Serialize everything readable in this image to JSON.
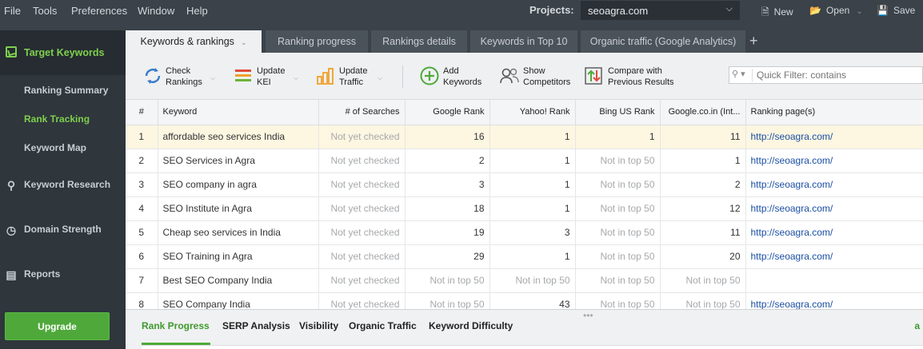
{
  "menu": [
    "File",
    "Tools",
    "Preferences",
    "Window",
    "Help"
  ],
  "projects": {
    "label": "Projects:",
    "value": "seoagra.com"
  },
  "top_buttons": {
    "new": "New",
    "open": "Open",
    "save": "Save"
  },
  "sidebar": {
    "target": "Target Keywords",
    "sub": [
      "Ranking Summary",
      "Rank Tracking",
      "Keyword Map"
    ],
    "active_sub": "Rank Tracking",
    "items": [
      "Keyword Research",
      "Domain Strength",
      "Reports"
    ],
    "upgrade": "Upgrade"
  },
  "tabs": [
    "Keywords & rankings",
    "Ranking progress",
    "Rankings details",
    "Keywords in Top 10",
    "Organic traffic (Google Analytics)"
  ],
  "toolbar": {
    "check": "Check\nRankings",
    "kei": "Update\nKEI",
    "traffic": "Update\nTraffic",
    "add": "Add\nKeywords",
    "competitors": "Show\nCompetitors",
    "compare": "Compare with\nPrevious Results",
    "filter_placeholder": "Quick Filter: contains"
  },
  "table": {
    "columns": [
      "#",
      "Keyword",
      "# of Searches",
      "Google Rank",
      "Yahoo! Rank",
      "Bing US Rank",
      "Google.co.in (Int...",
      "Ranking page(s)"
    ],
    "rows": [
      [
        "1",
        "affordable seo services India",
        "Not yet checked",
        "16",
        "1",
        "1",
        "11",
        "http://seoagra.com/"
      ],
      [
        "2",
        "SEO Services in Agra",
        "Not yet checked",
        "2",
        "1",
        "Not in top 50",
        "1",
        "http://seoagra.com/"
      ],
      [
        "3",
        "SEO company in agra",
        "Not yet checked",
        "3",
        "1",
        "Not in top 50",
        "2",
        "http://seoagra.com/"
      ],
      [
        "4",
        "SEO Institute in Agra",
        "Not yet checked",
        "18",
        "1",
        "Not in top 50",
        "12",
        "http://seoagra.com/"
      ],
      [
        "5",
        "Cheap seo services in India",
        "Not yet checked",
        "19",
        "3",
        "Not in top 50",
        "11",
        "http://seoagra.com/"
      ],
      [
        "6",
        "SEO Training in Agra",
        "Not yet checked",
        "29",
        "1",
        "Not in top 50",
        "20",
        "http://seoagra.com/"
      ],
      [
        "7",
        "Best SEO Company India",
        "Not yet checked",
        "Not in top 50",
        "Not in top 50",
        "Not in top 50",
        "Not in top 50",
        ""
      ],
      [
        "8",
        "SEO Company India",
        "Not yet checked",
        "Not in top 50",
        "43",
        "Not in top 50",
        "Not in top 50",
        "http://seoagra.com/"
      ]
    ]
  },
  "bottom_tabs": [
    "Rank Progress",
    "SERP Analysis",
    "Visibility",
    "Organic Traffic",
    "Keyword Difficulty"
  ],
  "bottom_right": "a"
}
